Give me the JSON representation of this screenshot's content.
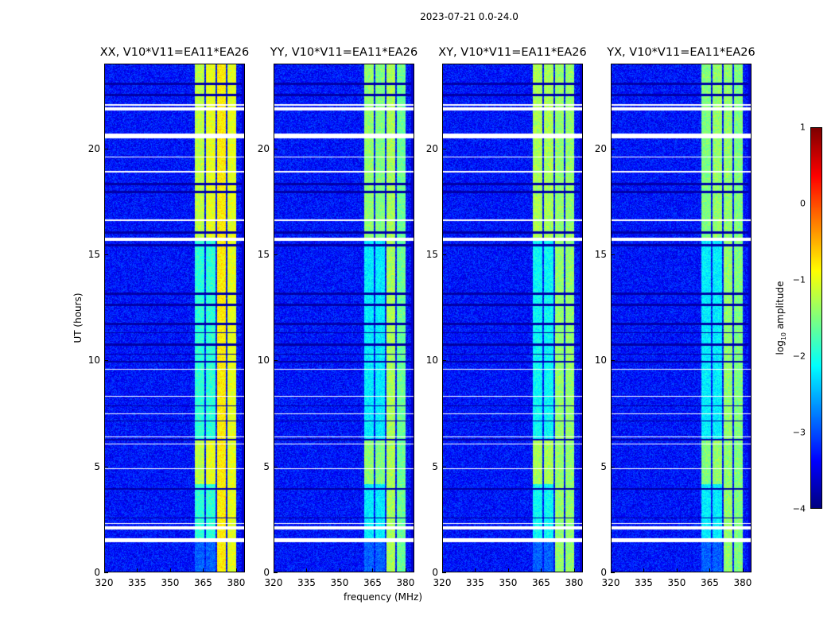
{
  "chart_data": {
    "type": "heatmap",
    "suptitle": "2023-07-21 0.0-24.0",
    "xlabel": "frequency (MHz)",
    "ylabel": "UT (hours)",
    "xlim": [
      320,
      384
    ],
    "ylim": [
      0,
      24
    ],
    "xticks": [
      "320",
      "335",
      "350",
      "365",
      "380"
    ],
    "xtick_values": [
      320,
      335,
      350,
      365,
      380
    ],
    "yticks": [
      "0",
      "5",
      "10",
      "15",
      "20"
    ],
    "ytick_values": [
      0,
      5,
      10,
      15,
      20
    ],
    "colorbar": {
      "label_prefix": "log",
      "label_sub": "10",
      "label_suffix": " amplitude",
      "range": [
        -4,
        1
      ],
      "ticks": [
        "1",
        "0",
        "−1",
        "−2",
        "−3",
        "−4"
      ],
      "tick_values": [
        1,
        0,
        -1,
        -2,
        -3,
        -4
      ],
      "colormap": "jet"
    },
    "background_log_amplitude": -3.3,
    "flagged_times_white": [
      [
        1.45,
        1.62
      ],
      [
        2.05,
        2.18
      ],
      [
        2.3,
        2.36
      ],
      [
        4.9,
        4.93
      ],
      [
        6.05,
        6.08
      ],
      [
        6.4,
        6.45
      ],
      [
        7.5,
        7.53
      ],
      [
        8.3,
        8.33
      ],
      [
        9.6,
        9.63
      ],
      [
        15.65,
        15.8
      ],
      [
        16.6,
        16.65
      ],
      [
        18.9,
        18.95
      ],
      [
        19.6,
        19.63
      ],
      [
        20.5,
        20.7
      ],
      [
        21.8,
        21.95
      ],
      [
        22.05,
        22.1
      ]
    ],
    "flagged_times_dark": [
      [
        2.55,
        2.62
      ],
      [
        3.9,
        4.0
      ],
      [
        6.25,
        6.32
      ],
      [
        7.15,
        7.2
      ],
      [
        7.85,
        7.9
      ],
      [
        9.9,
        10.0
      ],
      [
        10.3,
        10.35
      ],
      [
        10.7,
        10.8
      ],
      [
        11.3,
        11.35
      ],
      [
        11.7,
        11.8
      ],
      [
        12.6,
        12.7
      ],
      [
        13.1,
        13.2
      ],
      [
        15.4,
        15.5
      ],
      [
        16.0,
        16.1
      ],
      [
        17.9,
        18.0
      ],
      [
        18.3,
        18.4
      ],
      [
        22.5,
        22.6
      ],
      [
        23.0,
        23.1
      ]
    ],
    "panels": [
      {
        "title": "XX, V10*V11=EA11*EA26",
        "band_amp": [
          -1.2,
          -1.0,
          -0.8,
          -1.0
        ],
        "rfi_level": -1.6
      },
      {
        "title": "YY, V10*V11=EA11*EA26",
        "band_amp": [
          -1.4,
          -1.5,
          -1.3,
          -1.6
        ],
        "rfi_level": -1.9
      },
      {
        "title": "XY, V10*V11=EA11*EA26",
        "band_amp": [
          -1.3,
          -1.3,
          -1.4,
          -1.4
        ],
        "rfi_level": -1.8
      },
      {
        "title": "YX, V10*V11=EA11*EA26",
        "band_amp": [
          -1.5,
          -1.4,
          -1.4,
          -1.5
        ],
        "rfi_level": -1.9
      }
    ],
    "bright_bands_mhz": [
      [
        361,
        365.3
      ],
      [
        366,
        370.3
      ],
      [
        371.2,
        375
      ],
      [
        375.8,
        380
      ]
    ]
  }
}
